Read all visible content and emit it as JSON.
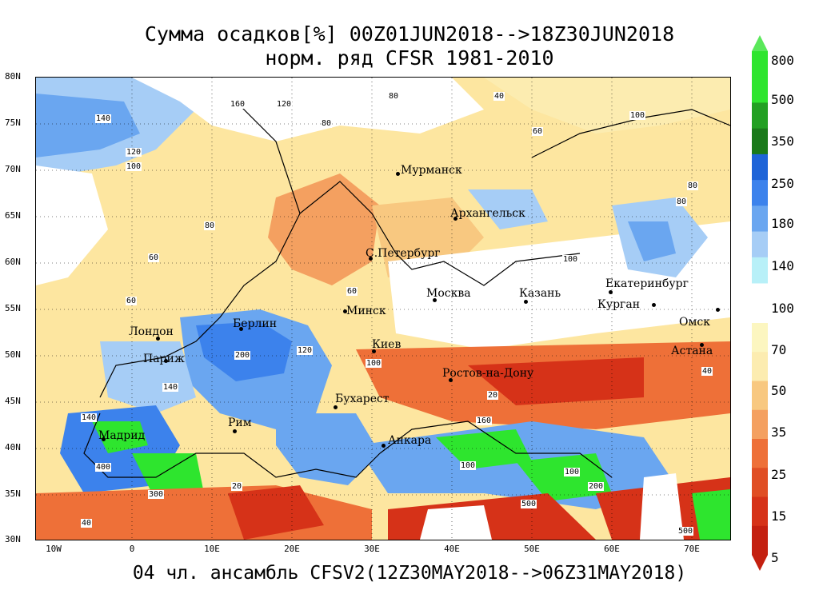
{
  "title_line1": "Сумма осадков[%] 00Z01JUN2018-->18Z30JUN2018",
  "title_line2": "норм. ряд CFSR 1981-2010",
  "footer": "04 чл. ансамбль CFSV2(12Z30MAY2018-->06Z31MAY2018)",
  "lat_labels": [
    "80N",
    "75N",
    "70N",
    "65N",
    "60N",
    "55N",
    "50N",
    "45N",
    "40N",
    "35N",
    "30N"
  ],
  "lon_labels": [
    "10W",
    "0",
    "10E",
    "20E",
    "30E",
    "40E",
    "50E",
    "60E",
    "70E"
  ],
  "cities": [
    {
      "name": "Мурманск"
    },
    {
      "name": "Архангельск"
    },
    {
      "name": "С.Петербург"
    },
    {
      "name": "Москва"
    },
    {
      "name": "Казань"
    },
    {
      "name": "Екатеринбург"
    },
    {
      "name": "Курган"
    },
    {
      "name": "Омск"
    },
    {
      "name": "Астана"
    },
    {
      "name": "Минск"
    },
    {
      "name": "Киев"
    },
    {
      "name": "Ростов-на-Дону"
    },
    {
      "name": "Берлин"
    },
    {
      "name": "Лондон"
    },
    {
      "name": "Париж"
    },
    {
      "name": "Бухарест"
    },
    {
      "name": "Рим"
    },
    {
      "name": "Мадрид"
    },
    {
      "name": "Анкара"
    }
  ],
  "contour_labels": [
    "160",
    "120",
    "80",
    "40",
    "140",
    "120",
    "100",
    "80",
    "60",
    "100",
    "80",
    "60",
    "80",
    "60",
    "100",
    "40",
    "140",
    "20",
    "200",
    "160",
    "400",
    "500",
    "300",
    "200",
    "100",
    "20",
    "40",
    "60",
    "80",
    "100",
    "120",
    "140",
    "100",
    "500"
  ],
  "colorbar": {
    "labels": [
      "800",
      "500",
      "350",
      "250",
      "180",
      "140",
      "100",
      "70",
      "50",
      "35",
      "25",
      "15",
      "5"
    ],
    "colors": [
      "#2ee52e",
      "#22a022",
      "#1a7a1a",
      "#1e64d8",
      "#3c82ec",
      "#6aa6f0",
      "#a6cdf6",
      "#ffffff",
      "#fcecb0",
      "#f8c880",
      "#f4a060",
      "#ee7038",
      "#d63218"
    ]
  }
}
